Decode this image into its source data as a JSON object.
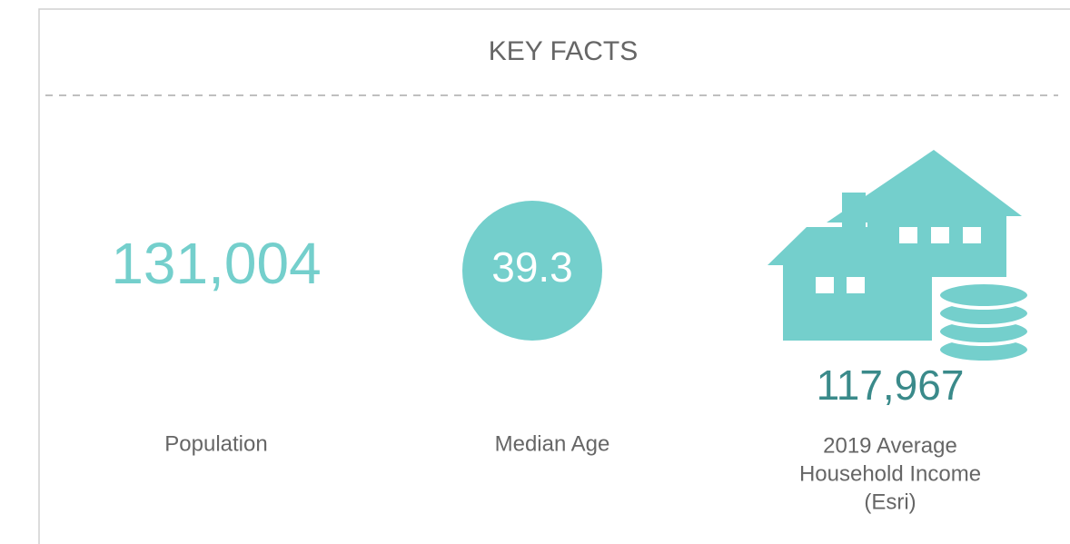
{
  "header": {
    "title": "KEY FACTS"
  },
  "facts": [
    {
      "value": "131,004",
      "label": "Population"
    },
    {
      "value": "39.3",
      "label": "Median Age"
    },
    {
      "value": "117,967",
      "label_lines": [
        "2019 Average",
        "Household Income",
        "(Esri)"
      ]
    }
  ]
}
